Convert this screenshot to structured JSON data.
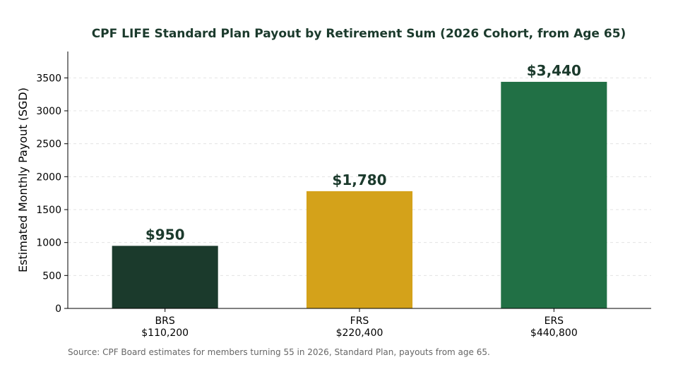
{
  "chart_data": {
    "type": "bar",
    "title": "CPF LIFE Standard Plan Payout by Retirement Sum (2026 Cohort, from Age 65)",
    "xlabel": "",
    "ylabel": "Estimated Monthly Payout (SGD)",
    "categories": [
      {
        "code": "BRS",
        "amount": "$110,200"
      },
      {
        "code": "FRS",
        "amount": "$220,400"
      },
      {
        "code": "ERS",
        "amount": "$440,800"
      }
    ],
    "values": [
      950,
      1780,
      3440
    ],
    "value_labels": [
      "$950",
      "$1,780",
      "$3,440"
    ],
    "bar_colors": [
      "#1b3a2c",
      "#d4a21a",
      "#217045"
    ],
    "ylim": [
      0,
      3900
    ],
    "yticks": [
      0,
      500,
      1000,
      1500,
      2000,
      2500,
      3000,
      3500
    ],
    "grid": true,
    "legend": "none"
  },
  "source_note": "Source: CPF Board estimates for members turning 55 in 2026, Standard Plan, payouts from age 65."
}
